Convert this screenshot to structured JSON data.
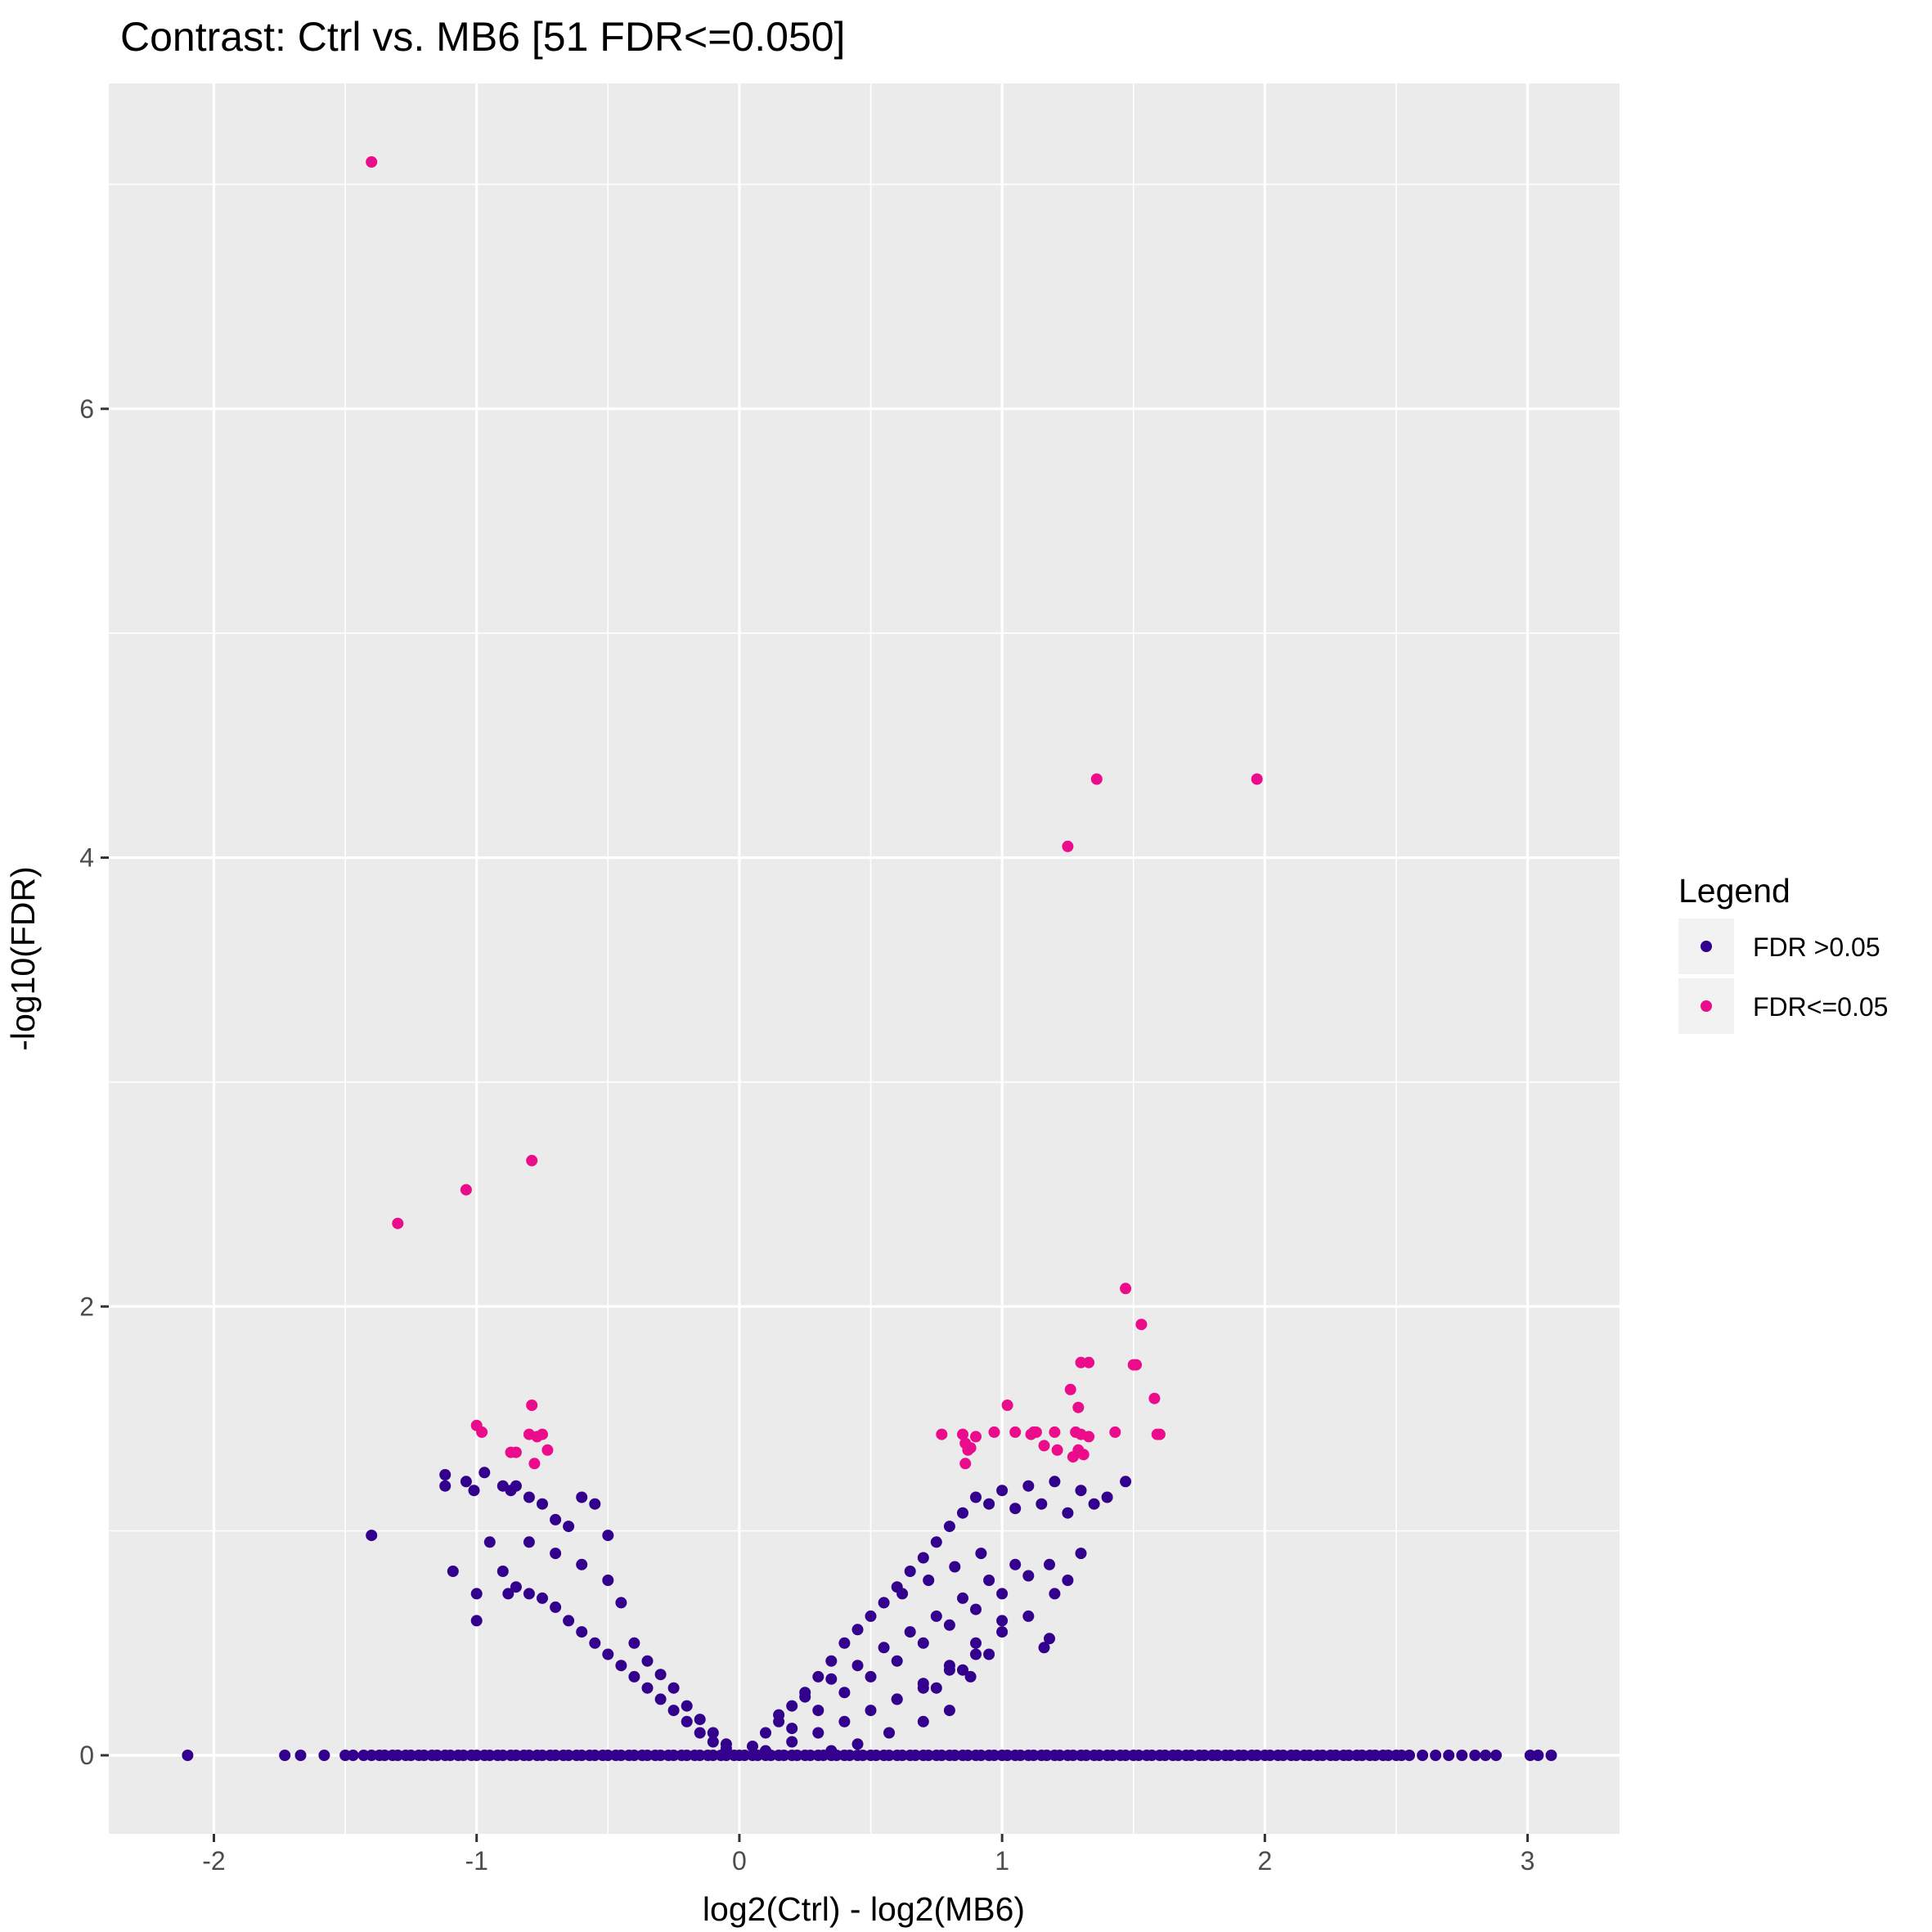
{
  "chart_data": {
    "type": "scatter",
    "title": "Contrast: Ctrl vs. MB6 [51 FDR<=0.050]",
    "xlabel": "log2(Ctrl) - log2(MB6)",
    "ylabel": "-log10(FDR)",
    "xlim": [
      -2.4,
      3.35
    ],
    "ylim": [
      -0.35,
      7.45
    ],
    "x_ticks": [
      -2,
      -1,
      0,
      1,
      2,
      3
    ],
    "y_ticks": [
      0,
      2,
      4,
      6
    ],
    "grid": true,
    "legend": {
      "title": "Legend",
      "position": "right",
      "entries": [
        {
          "label": "FDR >0.05",
          "color": "#32008c"
        },
        {
          "label": "FDR<=0.05",
          "color": "#eb0c8c"
        }
      ]
    },
    "series": [
      {
        "name": "FDR >0.05",
        "color": "#32008c",
        "x": [
          -2.1,
          -1.73,
          -1.67,
          -1.58,
          -1.5,
          -1.47,
          -1.43,
          -1.4,
          -1.37,
          -1.35,
          -1.32,
          -1.3,
          -1.27,
          -1.25,
          -1.22,
          -1.2,
          -1.17,
          -1.15,
          -1.12,
          -1.1,
          -1.07,
          -1.05,
          -1.02,
          -1.0,
          -0.97,
          -0.95,
          -0.92,
          -0.9,
          -0.87,
          -0.85,
          -0.82,
          -0.8,
          -0.77,
          -0.75,
          -0.72,
          -0.7,
          -0.67,
          -0.65,
          -0.62,
          -0.6,
          -0.57,
          -0.55,
          -0.52,
          -0.5,
          -0.47,
          -0.45,
          -0.42,
          -0.4,
          -0.37,
          -0.35,
          -0.32,
          -0.3,
          -0.27,
          -0.25,
          -0.22,
          -0.2,
          -0.17,
          -0.15,
          -0.12,
          -0.1,
          -0.07,
          -0.05,
          -0.02,
          0.0,
          0.02,
          0.05,
          0.07,
          0.1,
          0.12,
          0.15,
          0.17,
          0.2,
          0.22,
          0.25,
          0.27,
          0.3,
          0.32,
          0.35,
          0.37,
          0.4,
          0.42,
          0.45,
          0.47,
          0.5,
          0.52,
          0.55,
          0.57,
          0.6,
          0.62,
          0.65,
          0.67,
          0.7,
          0.72,
          0.75,
          0.77,
          0.8,
          0.82,
          0.85,
          0.87,
          0.9,
          0.92,
          0.95,
          0.97,
          1.0,
          1.02,
          1.05,
          1.07,
          1.1,
          1.12,
          1.15,
          1.17,
          1.2,
          1.22,
          1.25,
          1.27,
          1.3,
          1.32,
          1.35,
          1.37,
          1.4,
          1.42,
          1.45,
          1.47,
          1.5,
          1.52,
          1.55,
          1.57,
          1.6,
          1.62,
          1.65,
          1.67,
          1.7,
          1.72,
          1.75,
          1.77,
          1.8,
          1.82,
          1.85,
          1.87,
          1.9,
          1.92,
          1.95,
          1.97,
          2.0,
          2.02,
          2.05,
          2.07,
          2.1,
          2.12,
          2.15,
          2.17,
          2.2,
          2.22,
          2.25,
          2.27,
          2.3,
          2.32,
          2.35,
          2.37,
          2.4,
          2.42,
          2.45,
          2.47,
          2.5,
          2.52,
          2.55,
          2.6,
          2.65,
          2.7,
          2.75,
          2.8,
          2.84,
          2.88,
          3.01,
          3.04,
          3.09,
          -1.4,
          -1.12,
          -1.12,
          -1.04,
          -1.01,
          -0.97,
          -0.9,
          -0.87,
          -0.85,
          -0.8,
          -0.75,
          -0.7,
          -0.65,
          -0.6,
          -0.55,
          -0.5,
          -1.09,
          -1.0,
          -1.0,
          -0.95,
          -0.9,
          -0.85,
          -0.8,
          -0.75,
          -0.7,
          -0.65,
          -0.6,
          -0.55,
          -0.5,
          -0.45,
          -0.4,
          -0.35,
          -0.3,
          -0.25,
          -0.2,
          -0.15,
          -0.1,
          -0.05,
          -0.88,
          -0.8,
          -0.7,
          -0.6,
          -0.5,
          -0.45,
          -0.4,
          -0.35,
          -0.3,
          -0.25,
          -0.2,
          -0.15,
          -0.1,
          -0.05,
          0.05,
          0.1,
          0.15,
          0.2,
          0.25,
          0.3,
          0.35,
          0.4,
          0.45,
          0.5,
          0.55,
          0.6,
          0.65,
          0.7,
          0.75,
          0.8,
          0.85,
          0.9,
          0.95,
          1.0,
          1.05,
          1.1,
          1.15,
          1.2,
          1.25,
          1.3,
          1.35,
          1.4,
          1.47,
          0.1,
          0.2,
          0.3,
          0.4,
          0.5,
          0.6,
          0.7,
          0.8,
          0.9,
          1.0,
          1.1,
          1.2,
          1.25,
          1.3,
          0.2,
          0.3,
          0.4,
          0.5,
          0.6,
          0.7,
          0.8,
          0.9,
          1.0,
          1.1,
          1.18,
          0.15,
          0.25,
          0.35,
          0.45,
          0.55,
          0.65,
          0.75,
          0.85,
          0.95,
          1.05,
          0.6,
          0.7,
          0.8,
          0.9,
          1.0,
          0.62,
          0.72,
          0.82,
          0.92,
          1.16,
          1.18,
          0.75,
          0.85,
          0.95,
          0.88,
          0.8,
          0.7,
          0.57,
          0.45,
          0.35
        ],
        "y": [
          0,
          0,
          0,
          0,
          0,
          0,
          0,
          0,
          0,
          0,
          0,
          0,
          0,
          0,
          0,
          0,
          0,
          0,
          0,
          0,
          0,
          0,
          0,
          0,
          0,
          0,
          0,
          0,
          0,
          0,
          0,
          0,
          0,
          0,
          0,
          0,
          0,
          0,
          0,
          0,
          0,
          0,
          0,
          0,
          0,
          0,
          0,
          0,
          0,
          0,
          0,
          0,
          0,
          0,
          0,
          0,
          0,
          0,
          0,
          0,
          0,
          0,
          0,
          0,
          0,
          0,
          0,
          0,
          0,
          0,
          0,
          0,
          0,
          0,
          0,
          0,
          0,
          0,
          0,
          0,
          0,
          0,
          0,
          0,
          0,
          0,
          0,
          0,
          0,
          0,
          0,
          0,
          0,
          0,
          0,
          0,
          0,
          0,
          0,
          0,
          0,
          0,
          0,
          0,
          0,
          0,
          0,
          0,
          0,
          0,
          0,
          0,
          0,
          0,
          0,
          0,
          0,
          0,
          0,
          0,
          0,
          0,
          0,
          0,
          0,
          0,
          0,
          0,
          0,
          0,
          0,
          0,
          0,
          0,
          0,
          0,
          0,
          0,
          0,
          0,
          0,
          0,
          0,
          0,
          0,
          0,
          0,
          0,
          0,
          0,
          0,
          0,
          0,
          0,
          0,
          0,
          0,
          0,
          0,
          0,
          0,
          0,
          0,
          0,
          0,
          0,
          0,
          0,
          0,
          0,
          0,
          0,
          0,
          0,
          0,
          0,
          0.98,
          1.25,
          1.2,
          1.22,
          1.18,
          1.26,
          1.2,
          1.18,
          1.2,
          1.15,
          1.12,
          1.05,
          1.02,
          1.15,
          1.12,
          0.98,
          0.82,
          0.72,
          0.6,
          0.95,
          0.82,
          0.75,
          0.72,
          0.7,
          0.66,
          0.6,
          0.55,
          0.5,
          0.45,
          0.4,
          0.35,
          0.3,
          0.25,
          0.2,
          0.15,
          0.1,
          0.06,
          0.03,
          0.72,
          0.95,
          0.9,
          0.85,
          0.78,
          0.68,
          0.5,
          0.42,
          0.36,
          0.3,
          0.22,
          0.16,
          0.1,
          0.05,
          0.04,
          0.1,
          0.15,
          0.22,
          0.28,
          0.35,
          0.42,
          0.5,
          0.56,
          0.62,
          0.68,
          0.75,
          0.82,
          0.88,
          0.95,
          1.02,
          1.08,
          1.15,
          1.12,
          1.18,
          1.1,
          1.2,
          1.12,
          1.22,
          1.08,
          1.18,
          1.12,
          1.15,
          1.22,
          0.02,
          0.06,
          0.1,
          0.15,
          0.2,
          0.25,
          0.3,
          0.38,
          0.45,
          0.55,
          0.62,
          0.72,
          0.78,
          0.9,
          0.12,
          0.2,
          0.28,
          0.35,
          0.42,
          0.5,
          0.58,
          0.65,
          0.72,
          0.8,
          0.85,
          0.18,
          0.26,
          0.34,
          0.4,
          0.48,
          0.55,
          0.62,
          0.7,
          0.78,
          0.85,
          0.25,
          0.32,
          0.4,
          0.5,
          0.6,
          0.72,
          0.78,
          0.84,
          0.9,
          0.48,
          0.52,
          0.3,
          0.38,
          0.45,
          0.35,
          0.2,
          0.15,
          0.1,
          0.05,
          0.02
        ]
      },
      {
        "name": "FDR<=0.05",
        "color": "#eb0c8c",
        "x": [
          -1.4,
          -1.3,
          -1.04,
          -0.79,
          -1.0,
          -0.98,
          -0.87,
          -0.85,
          -0.8,
          -0.79,
          -0.77,
          -0.75,
          -0.73,
          -0.78,
          1.36,
          1.97,
          1.25,
          1.47,
          1.53,
          1.3,
          1.33,
          1.5,
          1.51,
          1.26,
          1.29,
          1.58,
          1.59,
          1.6,
          1.02,
          0.77,
          0.85,
          0.86,
          0.87,
          0.9,
          0.97,
          1.05,
          1.11,
          1.13,
          1.12,
          1.16,
          1.21,
          1.28,
          1.3,
          1.33,
          1.43,
          0.86,
          0.88,
          1.2,
          1.27,
          1.29,
          1.31
        ],
        "y": [
          7.1,
          2.37,
          2.52,
          2.65,
          1.47,
          1.44,
          1.35,
          1.35,
          1.43,
          1.56,
          1.42,
          1.43,
          1.36,
          1.3,
          4.35,
          4.35,
          4.05,
          2.08,
          1.92,
          1.75,
          1.75,
          1.74,
          1.74,
          1.63,
          1.55,
          1.59,
          1.43,
          1.43,
          1.56,
          1.43,
          1.43,
          1.39,
          1.36,
          1.42,
          1.44,
          1.44,
          1.43,
          1.44,
          1.44,
          1.38,
          1.36,
          1.44,
          1.43,
          1.42,
          1.44,
          1.3,
          1.37,
          1.44,
          1.33,
          1.36,
          1.34
        ]
      }
    ]
  }
}
